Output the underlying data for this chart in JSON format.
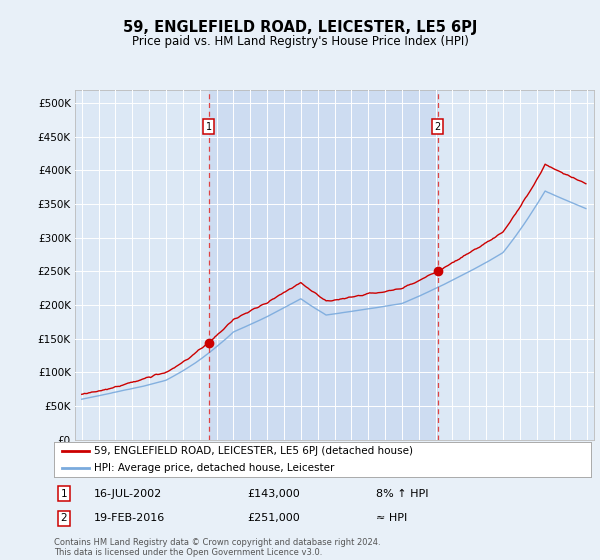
{
  "title": "59, ENGLEFIELD ROAD, LEICESTER, LE5 6PJ",
  "subtitle": "Price paid vs. HM Land Registry's House Price Index (HPI)",
  "bg_color": "#e8f0f8",
  "plot_bg_color": "#dce8f5",
  "shade_color": "#c8d8f0",
  "transaction1": {
    "date": "16-JUL-2002",
    "price": 143000,
    "note": "8% ↑ HPI",
    "x_year": 2002.54
  },
  "transaction2": {
    "date": "19-FEB-2016",
    "price": 251000,
    "note": "≈ HPI",
    "x_year": 2016.13
  },
  "ylim": [
    0,
    520000
  ],
  "yticks": [
    0,
    50000,
    100000,
    150000,
    200000,
    250000,
    300000,
    350000,
    400000,
    450000,
    500000
  ],
  "xlim_start": 1994.6,
  "xlim_end": 2025.4,
  "legend_label_red": "59, ENGLEFIELD ROAD, LEICESTER, LE5 6PJ (detached house)",
  "legend_label_blue": "HPI: Average price, detached house, Leicester",
  "footer": "Contains HM Land Registry data © Crown copyright and database right 2024.\nThis data is licensed under the Open Government Licence v3.0.",
  "red_color": "#cc0000",
  "blue_color": "#7aaadd",
  "dashed_color": "#dd4444"
}
